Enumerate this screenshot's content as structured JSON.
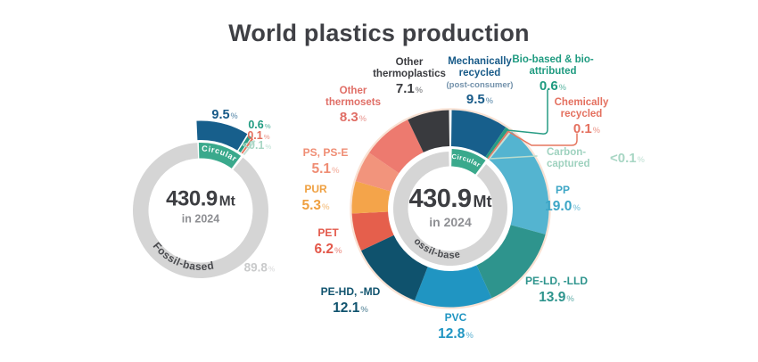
{
  "title": "World plastics production",
  "chart_data": [
    {
      "type": "donut",
      "name": "circularity-overview",
      "total": "430.9",
      "total_unit": "Mt",
      "year_label": "in 2024",
      "circular_color": "#3aa98c",
      "arc_labels": {
        "circular": "Circular",
        "fossil": "Fossil-based"
      },
      "segments": [
        {
          "label": "Mechanically recycled",
          "pct": "9.5%",
          "value": 9.5,
          "color": "#175f8c"
        },
        {
          "label": "Bio-based & bio-attributed",
          "pct": "0.6%",
          "value": 0.6,
          "color": "#279c84"
        },
        {
          "label": "Chemically recycled",
          "pct": "0.1%",
          "value": 0.1,
          "color": "#e5765f"
        },
        {
          "label": "Carbon-captured",
          "pct": "<0.1%",
          "value": 0.05,
          "color": "#c2e0d5"
        },
        {
          "label": "Fossil-based",
          "pct": "89.8%",
          "value": 89.8,
          "color": "#d5d5d5"
        }
      ]
    },
    {
      "type": "donut",
      "name": "polymer-breakdown",
      "total": "430.9",
      "total_unit": "Mt",
      "year_label": "in 2024",
      "circular_color": "#3aa98c",
      "arc_labels": {
        "circular": "Circular",
        "fossil": "Fossil-based"
      },
      "segments": [
        {
          "label": "Mechanically recycled",
          "sublabel": "(post-consumer)",
          "pct": "9.5%",
          "value": 9.5,
          "color": "#175f8c"
        },
        {
          "label": "Bio-based & bio-attributed",
          "pct": "0.6%",
          "value": 0.6,
          "color": "#279c84"
        },
        {
          "label": "Chemically recycled",
          "pct": "0.1%",
          "value": 0.1,
          "color": "#e5765f"
        },
        {
          "label": "Carbon-captured",
          "pct": "<0.1%",
          "value": 0.05,
          "color": "#c2e0d5"
        },
        {
          "label": "PP",
          "pct": "19.0%",
          "value": 19.0,
          "color": "#54b4d0"
        },
        {
          "label": "PE-LD, -LLD",
          "pct": "13.9%",
          "value": 13.9,
          "color": "#2e948d"
        },
        {
          "label": "PVC",
          "pct": "12.8%",
          "value": 12.8,
          "color": "#2095c2"
        },
        {
          "label": "PE-HD, -MD",
          "pct": "12.1%",
          "value": 12.1,
          "color": "#0f526d"
        },
        {
          "label": "PET",
          "pct": "6.2%",
          "value": 6.2,
          "color": "#e55f4c"
        },
        {
          "label": "PUR",
          "pct": "5.3%",
          "value": 5.3,
          "color": "#f4a44a"
        },
        {
          "label": "PS, PS-E",
          "pct": "5.1%",
          "value": 5.1,
          "color": "#f2947c"
        },
        {
          "label": "Other thermosets",
          "pct": "8.3%",
          "value": 8.3,
          "color": "#ed7a6f"
        },
        {
          "label": "Other thermoplastics",
          "pct": "7.1%",
          "value": 7.1,
          "color": "#393a3e"
        }
      ]
    }
  ]
}
